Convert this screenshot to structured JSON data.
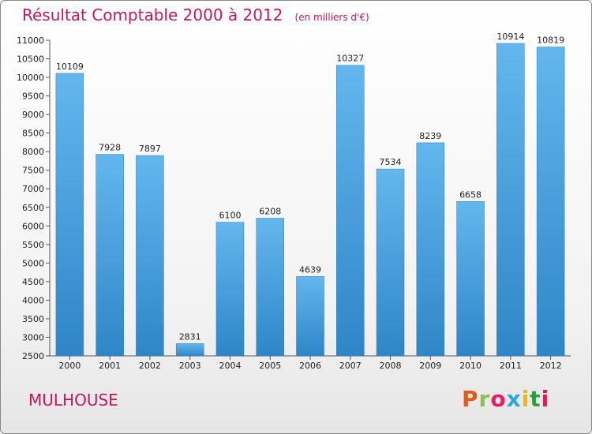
{
  "header": {
    "title": "Résultat Comptable 2000 à 2012",
    "unit": "(en milliers d'€)"
  },
  "footer": {
    "city": "MULHOUSE",
    "logo_text": "Proxiti",
    "logo_colors": [
      "#e05a1b",
      "#8bc34a",
      "#e91e63",
      "#29a7df",
      "#f4b400",
      "#2e9d3f",
      "#d81b60"
    ]
  },
  "colors": {
    "bar": "#4aa3e0",
    "bar_light": "#63b7ee",
    "bar_dark": "#2f86c7",
    "title": "#c2185b"
  },
  "chart_data": {
    "type": "bar",
    "title": "Résultat Comptable 2000 à 2012",
    "xlabel": "",
    "ylabel": "",
    "categories": [
      "2000",
      "2001",
      "2002",
      "2003",
      "2004",
      "2005",
      "2006",
      "2007",
      "2008",
      "2009",
      "2010",
      "2011",
      "2012"
    ],
    "values": [
      10109,
      7928,
      7897,
      2831,
      6100,
      6208,
      4639,
      10327,
      7534,
      8239,
      6658,
      10914,
      10819
    ],
    "value_labels": [
      "10109",
      "7928",
      "7897",
      "2831",
      "6100",
      "6208",
      "4639",
      "10327",
      "7534",
      "8239",
      "6658",
      "10914",
      "10819"
    ],
    "ylim": [
      2500,
      11000
    ],
    "yticks": [
      2500,
      3000,
      3500,
      4000,
      4500,
      5000,
      5500,
      6000,
      6500,
      7000,
      7500,
      8000,
      8500,
      9000,
      9500,
      10000,
      10500,
      11000
    ],
    "ytick_labels": [
      "2500",
      "3000",
      "3500",
      "4000",
      "4500",
      "5000",
      "5500",
      "6000",
      "6500",
      "7000",
      "7500",
      "8000",
      "8500",
      "9000",
      "9500",
      "10000",
      "10500",
      "11000"
    ],
    "grid": false,
    "legend": "none"
  }
}
